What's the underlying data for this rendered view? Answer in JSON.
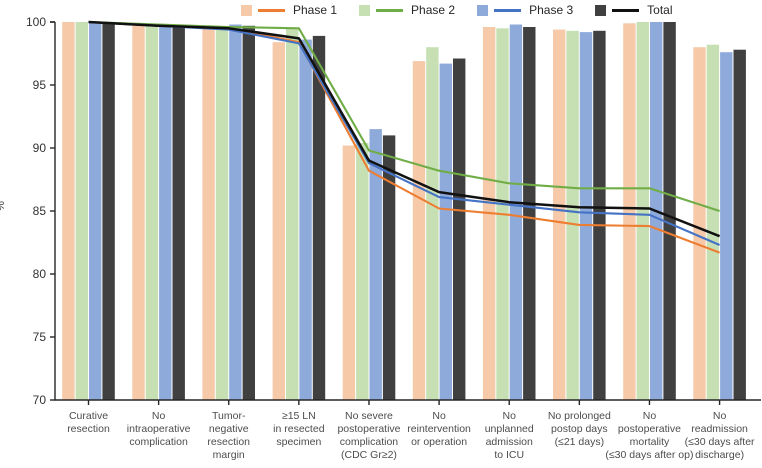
{
  "legend": {
    "items": [
      {
        "label": "Phase 1",
        "swatch_color": "#F6C9A8",
        "line_color": "#ED7D31"
      },
      {
        "label": "Phase 2",
        "swatch_color": "#C6E0B4",
        "line_color": "#70AD47"
      },
      {
        "label": "Phase 3",
        "swatch_color": "#8EAADB",
        "line_color": "#4472C4"
      },
      {
        "label": "Total",
        "swatch_color": "#404040",
        "line_color": "#111111"
      }
    ]
  },
  "chart_data": {
    "type": "bar",
    "subtype": "grouped-bars-with-cumulative-lines",
    "ylabel": "%",
    "ylim": [
      70,
      100
    ],
    "yticks": [
      70,
      75,
      80,
      85,
      90,
      95,
      100
    ],
    "grid": false,
    "legend_position": "top",
    "categories": [
      "Curative resection",
      "No intraoperative complication",
      "Tumor-negative resection margin",
      "≥15 LN in resected specimen",
      "No severe postoperative complication (CDC Gr≥2)",
      "No reintervention or operation",
      "No unplanned admission to ICU",
      "No prolonged postop days (≤21 days)",
      "No postoperative mortality (≤30 days after op)",
      "No readmission (≤30 days after discharge)"
    ],
    "category_label_lines": [
      [
        "Curative",
        "resection"
      ],
      [
        "No",
        "intraoperative",
        "complication"
      ],
      [
        "Tumor-",
        "negative",
        "resection",
        "margin"
      ],
      [
        "≥15 LN",
        "in resected",
        "specimen"
      ],
      [
        "No severe",
        "postoperative",
        "complication",
        "(CDC Gr≥2)"
      ],
      [
        "No",
        "reintervention",
        "or operation"
      ],
      [
        "No",
        "unplanned",
        "admission",
        "to ICU"
      ],
      [
        "No prolonged",
        "postop days",
        "(≤21 days)"
      ],
      [
        "No",
        "postoperative",
        "mortality",
        "(≤30 days after op)"
      ],
      [
        "No",
        "readmission",
        "(≤30 days after",
        "discharge)"
      ]
    ],
    "bar_series": [
      {
        "name": "Phase 1",
        "color": "#F6C9A8",
        "values": [
          100,
          99.7,
          99.7,
          98.4,
          90.2,
          96.9,
          99.6,
          99.4,
          99.9,
          98.0
        ]
      },
      {
        "name": "Phase 2",
        "color": "#C6E0B4",
        "values": [
          100,
          99.8,
          99.6,
          99.5,
          90.4,
          98.0,
          99.5,
          99.3,
          100,
          98.2
        ]
      },
      {
        "name": "Phase 3",
        "color": "#8EAADB",
        "values": [
          100,
          99.7,
          99.8,
          98.6,
          91.5,
          96.7,
          99.8,
          99.2,
          100,
          97.6
        ]
      },
      {
        "name": "Total",
        "color": "#404040",
        "values": [
          100,
          99.7,
          99.7,
          98.9,
          91.0,
          97.1,
          99.6,
          99.3,
          100,
          97.8
        ]
      }
    ],
    "line_series": [
      {
        "name": "Phase 1",
        "color": "#ED7D31",
        "width": 2.1,
        "values": [
          100,
          99.7,
          99.5,
          98.4,
          88.2,
          85.2,
          84.7,
          83.9,
          83.8,
          81.7
        ]
      },
      {
        "name": "Phase 2",
        "color": "#70AD47",
        "width": 2.1,
        "values": [
          100,
          99.8,
          99.6,
          99.5,
          89.8,
          88.2,
          87.2,
          86.8,
          86.8,
          85.0
        ]
      },
      {
        "name": "Phase 3",
        "color": "#4472C4",
        "width": 2.1,
        "values": [
          100,
          99.7,
          99.4,
          98.3,
          88.8,
          86.1,
          85.5,
          84.9,
          84.7,
          82.3
        ]
      },
      {
        "name": "Total",
        "color": "#111111",
        "width": 2.5,
        "values": [
          100,
          99.7,
          99.5,
          98.7,
          89.0,
          86.5,
          85.7,
          85.3,
          85.2,
          83.0
        ]
      }
    ],
    "axis_color": "#262626",
    "tick_label_color": "#333333",
    "category_label_color": "#4d4d4d"
  }
}
